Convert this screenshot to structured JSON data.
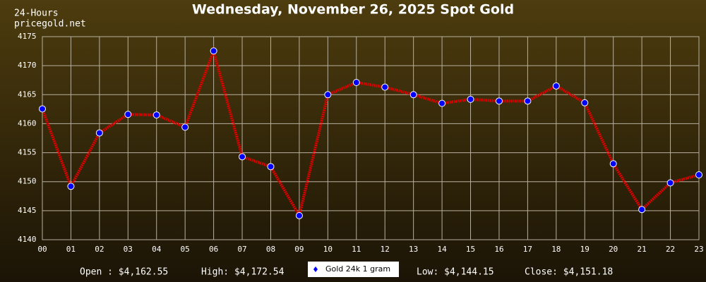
{
  "chart_data": {
    "type": "line",
    "title": "Wednesday, November 26, 2025 Spot Gold",
    "period": "24-Hours",
    "source": "pricegold.net",
    "categories": [
      "00",
      "01",
      "02",
      "03",
      "04",
      "05",
      "06",
      "07",
      "08",
      "09",
      "10",
      "11",
      "12",
      "13",
      "14",
      "15",
      "16",
      "17",
      "18",
      "19",
      "20",
      "21",
      "22",
      "23"
    ],
    "series": [
      {
        "name": "Gold 24k 1 gram",
        "color": "#e00000",
        "marker_color": "#0000ff",
        "values": [
          4162.55,
          4149.2,
          4158.4,
          4161.6,
          4161.5,
          4159.4,
          4172.54,
          4154.3,
          4152.6,
          4144.15,
          4165.0,
          4167.1,
          4166.3,
          4165.0,
          4163.5,
          4164.2,
          4163.9,
          4163.9,
          4166.5,
          4163.6,
          4153.1,
          4145.2,
          4149.8,
          4151.18
        ]
      }
    ],
    "ylim": [
      4140,
      4175
    ],
    "yticks": [
      4140,
      4145,
      4150,
      4155,
      4160,
      4165,
      4170,
      4175
    ],
    "grid": true,
    "stats": [
      "Open : $4,162.55",
      "High: $4,172.54",
      "Low: $4,144.15",
      "Close: $4,151.18"
    ]
  }
}
